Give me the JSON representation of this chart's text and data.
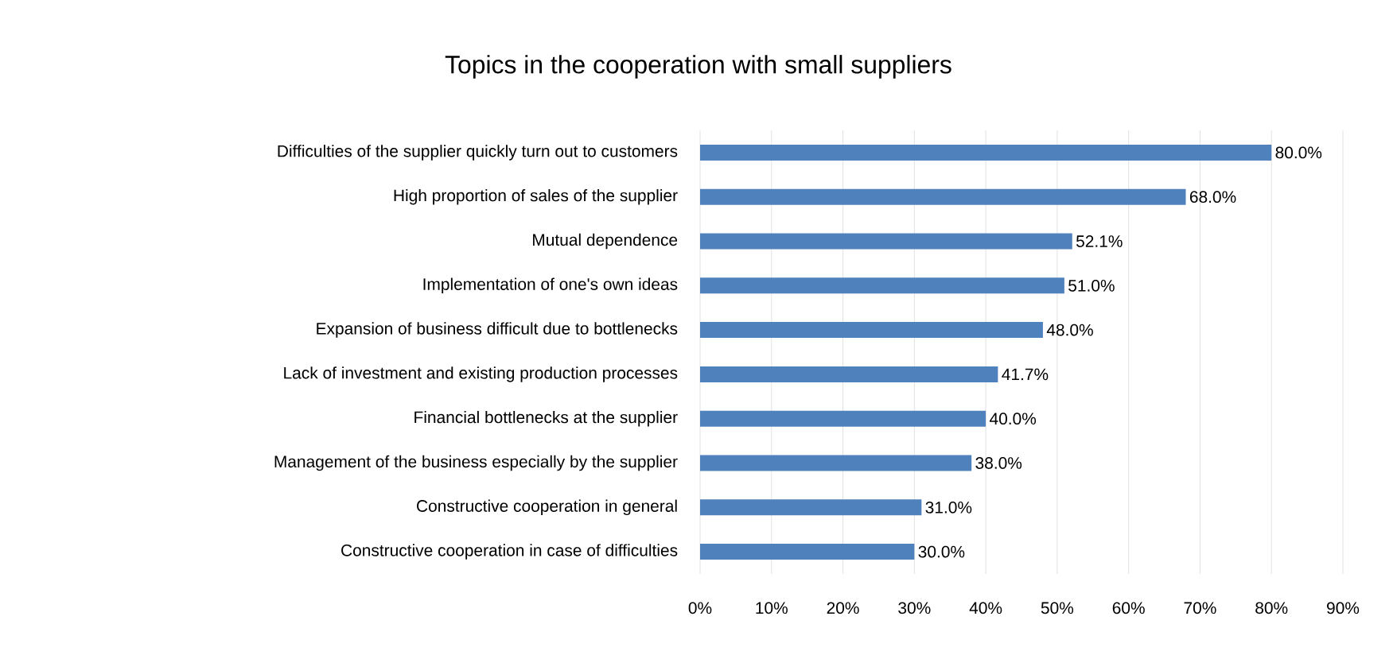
{
  "chart_data": {
    "type": "bar",
    "orientation": "horizontal",
    "title": "Topics in the cooperation with small suppliers",
    "categories": [
      "Difficulties of the supplier quickly turn out to customers",
      "High proportion of sales of the supplier",
      "Mutual dependence",
      "Implementation of one's own ideas",
      "Expansion of business difficult due to bottlenecks",
      "Lack of investment and existing production processes",
      "Financial bottlenecks at the supplier",
      "Management of the business especially by the supplier",
      "Constructive cooperation in general",
      "Constructive cooperation in case of difficulties"
    ],
    "values": [
      80.0,
      68.0,
      52.1,
      51.0,
      48.0,
      41.7,
      40.0,
      38.0,
      31.0,
      30.0
    ],
    "value_labels": [
      "80.0%",
      "68.0%",
      "52.1%",
      "51.0%",
      "48.0%",
      "41.7%",
      "40.0%",
      "38.0%",
      "31.0%",
      "30.0%"
    ],
    "color": "#4f81bd",
    "xlim": [
      0,
      90
    ],
    "xticks": [
      {
        "value": 0,
        "label": "0%"
      },
      {
        "value": 10,
        "label": "10%"
      },
      {
        "value": 20,
        "label": "20%"
      },
      {
        "value": 30,
        "label": "30%"
      },
      {
        "value": 40,
        "label": "40%"
      },
      {
        "value": 50,
        "label": "50%"
      },
      {
        "value": 60,
        "label": "60%"
      },
      {
        "value": 70,
        "label": "70%"
      },
      {
        "value": 80,
        "label": "80%"
      },
      {
        "value": 90,
        "label": "90%"
      }
    ],
    "grid": "x"
  }
}
